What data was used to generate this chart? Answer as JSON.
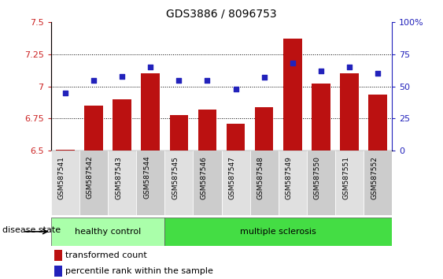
{
  "title": "GDS3886 / 8096753",
  "samples": [
    "GSM587541",
    "GSM587542",
    "GSM587543",
    "GSM587544",
    "GSM587545",
    "GSM587546",
    "GSM587547",
    "GSM587548",
    "GSM587549",
    "GSM587550",
    "GSM587551",
    "GSM587552"
  ],
  "bar_values": [
    6.51,
    6.85,
    6.9,
    7.1,
    6.78,
    6.82,
    6.71,
    6.84,
    7.37,
    7.02,
    7.1,
    6.94
  ],
  "dot_percentiles": [
    45,
    55,
    58,
    65,
    55,
    55,
    48,
    57,
    68,
    62,
    65,
    60
  ],
  "ylim_left": [
    6.5,
    7.5
  ],
  "ylim_right": [
    0,
    100
  ],
  "yticks_left": [
    6.5,
    6.75,
    7.0,
    7.25,
    7.5
  ],
  "ytick_labels_left": [
    "6.5",
    "6.75",
    "7",
    "7.25",
    "7.5"
  ],
  "yticks_right": [
    0,
    25,
    50,
    75,
    100
  ],
  "ytick_labels_right": [
    "0",
    "25",
    "50",
    "75",
    "100%"
  ],
  "bar_color": "#bb1111",
  "dot_color": "#2222bb",
  "bar_bottom": 6.5,
  "group_labels": [
    "healthy control",
    "multiple sclerosis"
  ],
  "healthy_count": 4,
  "total_count": 12,
  "healthy_bg": "#aaffaa",
  "ms_bg": "#44dd44",
  "legend_bar_label": "transformed count",
  "legend_dot_label": "percentile rank within the sample",
  "disease_state_label": "disease state",
  "title_fontsize": 10,
  "tick_fontsize": 8,
  "col_bg_even": "#e0e0e0",
  "col_bg_odd": "#cccccc",
  "grid_yticks": [
    6.75,
    7.0,
    7.25
  ]
}
